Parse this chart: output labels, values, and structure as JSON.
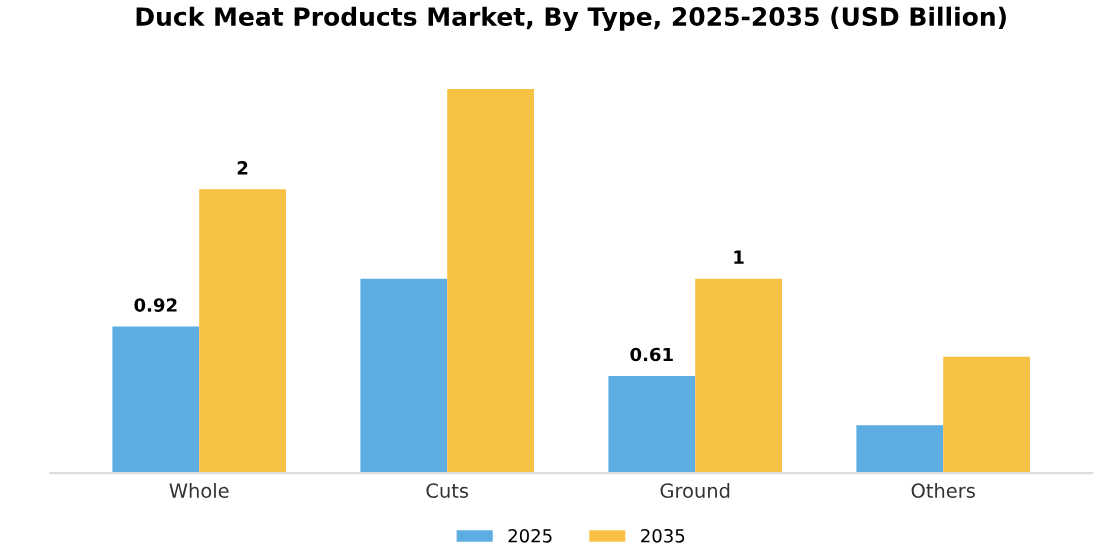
{
  "chart_data": {
    "type": "bar",
    "title": "Duck Meat Products Market, By Type, 2025-2035 (USD Billion)",
    "categories": [
      "Whole",
      "Cuts",
      "Ground",
      "Others"
    ],
    "series": [
      {
        "name": "2025",
        "color": "#5dade2",
        "values": [
          0.92,
          1.22,
          0.61,
          0.3
        ],
        "value_labels": [
          "0.92",
          null,
          "0.61",
          null
        ]
      },
      {
        "name": "2035",
        "color": "#f7c244",
        "values": [
          1.78,
          2.41,
          1.22,
          0.73
        ],
        "value_labels": [
          "2",
          null,
          "1",
          null
        ]
      }
    ],
    "legend": "bottom",
    "grid": false
  }
}
